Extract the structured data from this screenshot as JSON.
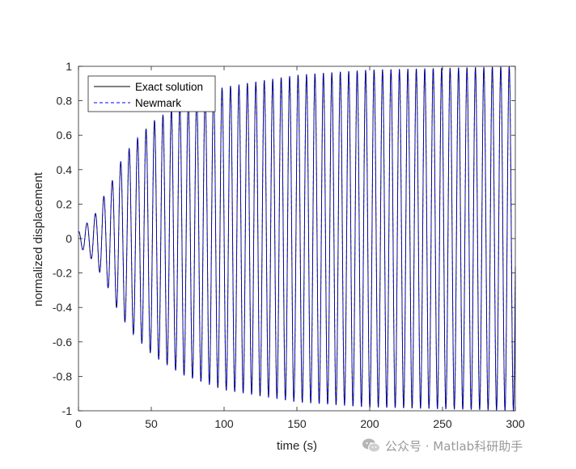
{
  "chart_data": {
    "type": "line",
    "title": "",
    "xlabel": "time (s)",
    "ylabel": "normalized displacement",
    "xlim": [
      0,
      300
    ],
    "ylim": [
      -1,
      1
    ],
    "x_ticks": [
      0,
      50,
      100,
      150,
      200,
      250,
      300
    ],
    "x_tick_labels": [
      "0",
      "50",
      "100",
      "150",
      "200",
      "250",
      "300"
    ],
    "y_ticks": [
      -1,
      -0.8,
      -0.6,
      -0.4,
      -0.2,
      0,
      0.2,
      0.4,
      0.6,
      0.8,
      1
    ],
    "y_tick_labels": [
      "-1",
      "-0.8",
      "-0.6",
      "-0.4",
      "-0.2",
      "0",
      "0.2",
      "0.4",
      "0.6",
      "0.8",
      "1"
    ],
    "grid": false,
    "legend_position": "top-left",
    "series": [
      {
        "name": "Exact solution",
        "color": "#000000",
        "line_style": "solid",
        "period_s": 5.8,
        "initial_value": 0.04,
        "envelope_t": [
          0,
          7,
          12,
          17,
          22,
          27,
          37,
          51,
          71,
          100,
          150,
          200,
          250,
          300
        ],
        "envelope_amplitude": [
          0.04,
          0.1,
          0.15,
          0.24,
          0.31,
          0.42,
          0.55,
          0.68,
          0.79,
          0.88,
          0.95,
          0.98,
          0.99,
          1.0
        ]
      },
      {
        "name": "Newmark",
        "color": "#0000ff",
        "line_style": "dashed",
        "period_s": 5.8,
        "initial_value": 0.04,
        "envelope_t": [
          0,
          7,
          12,
          17,
          22,
          27,
          37,
          51,
          71,
          100,
          150,
          200,
          250,
          300
        ],
        "envelope_amplitude": [
          0.04,
          0.1,
          0.15,
          0.24,
          0.31,
          0.42,
          0.55,
          0.68,
          0.79,
          0.88,
          0.95,
          0.98,
          0.99,
          1.0
        ]
      }
    ]
  },
  "watermark": {
    "text": "公众号 · Matlab科研助手"
  }
}
